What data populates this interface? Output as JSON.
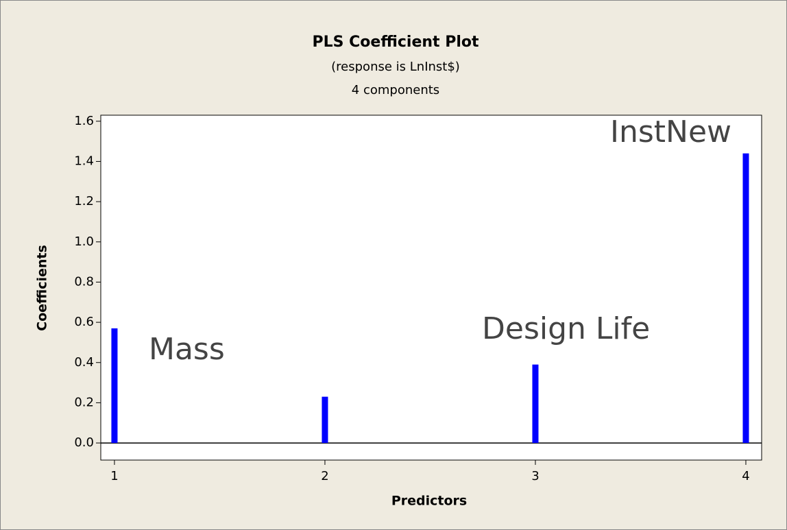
{
  "chart_data": {
    "type": "bar",
    "title": "PLS Coefficient Plot",
    "subtitle": [
      "(response is LnInst$)",
      "4 components"
    ],
    "x_label": "Predictors",
    "y_label": "Coefficients",
    "x": [
      1,
      2,
      3,
      4
    ],
    "values": [
      0.57,
      0.23,
      0.39,
      1.44
    ],
    "color": "#0000ff",
    "annotations": [
      "Mass",
      "Design Life",
      "InstNew"
    ],
    "xlim": [
      0.935,
      4.075
    ],
    "xticks": [
      1,
      2,
      3,
      4
    ],
    "ylim": [
      -0.085,
      1.63
    ],
    "yticks": [
      {
        "value": 0,
        "label": "0.0"
      },
      0.2,
      0.4,
      0.6,
      0.8,
      {
        "value": 1,
        "label": "1.0"
      },
      1.2,
      1.4,
      1.6
    ],
    "reference_line": 0
  }
}
